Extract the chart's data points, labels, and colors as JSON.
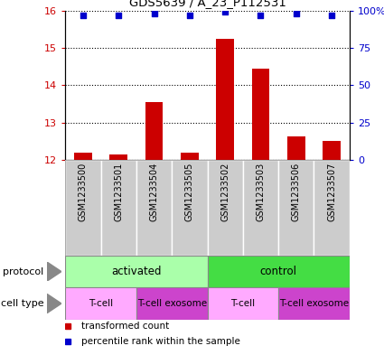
{
  "title": "GDS5639 / A_23_P112531",
  "samples": [
    "GSM1233500",
    "GSM1233501",
    "GSM1233504",
    "GSM1233505",
    "GSM1233502",
    "GSM1233503",
    "GSM1233506",
    "GSM1233507"
  ],
  "transformed_counts": [
    12.18,
    12.13,
    13.55,
    12.18,
    15.25,
    14.45,
    12.62,
    12.5
  ],
  "percentile_ranks": [
    97,
    97,
    98,
    97,
    99,
    97,
    98,
    97
  ],
  "ylim_left": [
    12,
    16
  ],
  "ylim_right": [
    0,
    100
  ],
  "yticks_left": [
    12,
    13,
    14,
    15,
    16
  ],
  "yticks_right": [
    0,
    25,
    50,
    75,
    100
  ],
  "ytick_right_labels": [
    "0",
    "25",
    "50",
    "75",
    "100%"
  ],
  "bar_color": "#cc0000",
  "dot_color": "#0000cc",
  "bar_bottom": 12,
  "protocol_color_light": "#aaffaa",
  "protocol_color_dark": "#44dd44",
  "cell_type_color_light": "#ffaaff",
  "cell_type_color_dark": "#cc44cc",
  "sample_box_color": "#cccccc",
  "protocol_configs": [
    {
      "label": "activated",
      "span": [
        0,
        3
      ],
      "color": "#aaffaa"
    },
    {
      "label": "control",
      "span": [
        4,
        7
      ],
      "color": "#44dd44"
    }
  ],
  "cell_configs": [
    {
      "label": "T-cell",
      "span": [
        0,
        1
      ],
      "color": "#ffaaff"
    },
    {
      "label": "T-cell exosome",
      "span": [
        2,
        3
      ],
      "color": "#cc44cc"
    },
    {
      "label": "T-cell",
      "span": [
        4,
        5
      ],
      "color": "#ffaaff"
    },
    {
      "label": "T-cell exosome",
      "span": [
        6,
        7
      ],
      "color": "#cc44cc"
    }
  ],
  "legend_items": [
    {
      "color": "#cc0000",
      "label": "transformed count"
    },
    {
      "color": "#0000cc",
      "label": "percentile rank within the sample"
    }
  ]
}
